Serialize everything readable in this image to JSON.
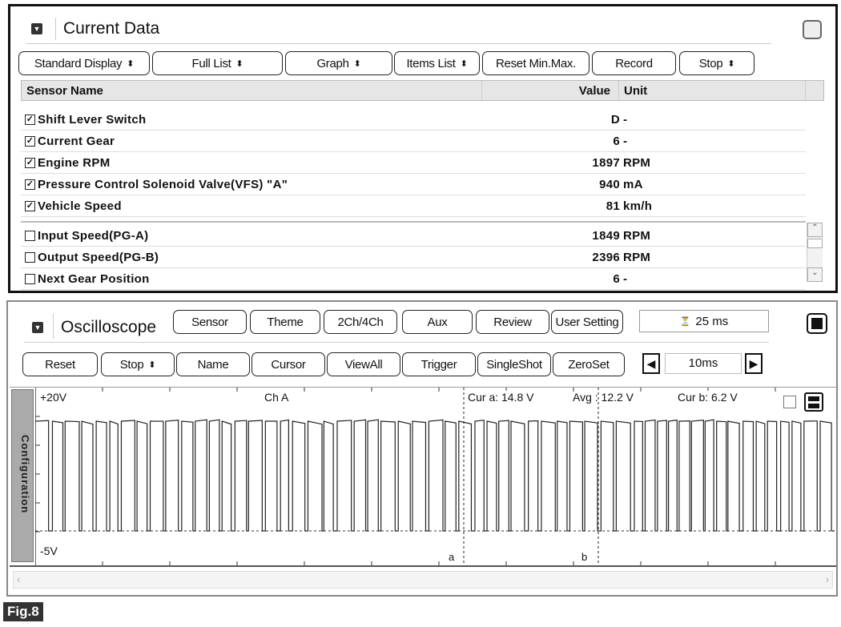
{
  "current_data": {
    "title": "Current Data",
    "toolbar": [
      {
        "label": "Standard Display",
        "spinner": true
      },
      {
        "label": "Full List",
        "spinner": true
      },
      {
        "label": "Graph",
        "spinner": true
      },
      {
        "label": "Items List",
        "spinner": true
      },
      {
        "label": "Reset Min.Max.",
        "spinner": false
      },
      {
        "label": "Record",
        "spinner": false
      },
      {
        "label": "Stop",
        "spinner": true
      }
    ],
    "columns": {
      "name": "Sensor Name",
      "value": "Value",
      "unit": "Unit"
    },
    "rows": [
      {
        "name": "Shift Lever Switch",
        "value": "D",
        "unit": "-",
        "checked": true
      },
      {
        "name": "Current Gear",
        "value": "6",
        "unit": "-",
        "checked": true
      },
      {
        "name": "Engine RPM",
        "value": "1897",
        "unit": "RPM",
        "checked": true
      },
      {
        "name": "Pressure Control Solenoid Valve(VFS) \"A\"",
        "value": "940",
        "unit": "mA",
        "checked": true
      },
      {
        "name": "Vehicle Speed",
        "value": "81",
        "unit": "km/h",
        "checked": true
      },
      {
        "name": "Input Speed(PG-A)",
        "value": "1849",
        "unit": "RPM",
        "checked": false
      },
      {
        "name": "Output Speed(PG-B)",
        "value": "2396",
        "unit": "RPM",
        "checked": false
      },
      {
        "name": "Next Gear Position",
        "value": "6",
        "unit": "-",
        "checked": false
      }
    ]
  },
  "oscilloscope": {
    "title": "Oscilloscope",
    "top_buttons": [
      "Sensor",
      "Theme",
      "2Ch/4Ch",
      "Aux",
      "Review",
      "User Setting"
    ],
    "time_display": "25 ms",
    "buttons": [
      {
        "label": "Reset",
        "spinner": false
      },
      {
        "label": "Stop",
        "spinner": true
      },
      {
        "label": "Name",
        "spinner": false
      },
      {
        "label": "Cursor",
        "spinner": false
      },
      {
        "label": "ViewAll",
        "spinner": false
      },
      {
        "label": "Trigger",
        "spinner": false
      },
      {
        "label": "SingleShot",
        "spinner": false
      },
      {
        "label": "ZeroSet",
        "spinner": false
      }
    ],
    "timebase": "10ms",
    "config_tab": "Configuration",
    "y_max": "+20V",
    "y_min": "-5V",
    "channel": "Ch A",
    "cur_a": "Cur a: 14.8 V",
    "avg": "Avg : 12.2 V",
    "cur_b": "Cur b: 6.2 V",
    "cursor_a": "a",
    "cursor_b": "b"
  },
  "figure_label": "Fig.8"
}
